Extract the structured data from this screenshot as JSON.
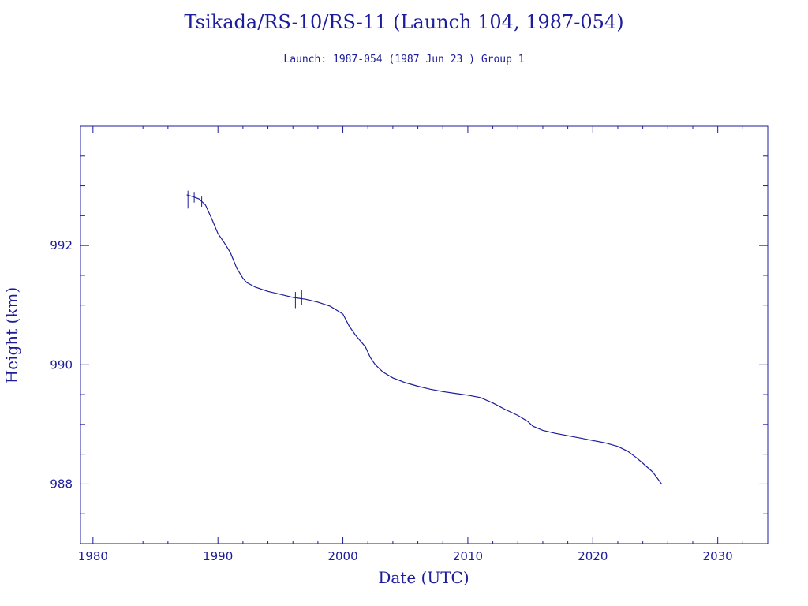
{
  "chart_data": {
    "type": "line",
    "title": "Tsikada/RS-10/RS-11 (Launch 104, 1987-054)",
    "subtitle": "Launch: 1987-054  (1987 Jun 23 )  Group 1",
    "xlabel": "Date (UTC)",
    "ylabel": "Height (km)",
    "xlim": [
      1979,
      2034
    ],
    "ylim": [
      987,
      994
    ],
    "x_ticks": [
      1980,
      1990,
      2000,
      2010,
      2020,
      2030
    ],
    "y_ticks": [
      988,
      990,
      992
    ],
    "grid": false,
    "color": "#1c1c9c",
    "series": [
      {
        "x": [
          1987.5,
          1988.0,
          1988.5,
          1989.0,
          1989.5,
          1990.0,
          1990.5,
          1991.0,
          1991.5,
          1992.0,
          1992.3,
          1993.0,
          1994.0,
          1995.0,
          1996.0,
          1997.0,
          1998.0,
          1999.0,
          2000.0,
          2000.5,
          2001.0,
          2001.8,
          2002.2,
          2002.6,
          2003.2,
          2004.0,
          2005.0,
          2006.0,
          2007.0,
          2008.0,
          2009.0,
          2010.0,
          2011.0,
          2012.0,
          2013.0,
          2014.0,
          2014.8,
          2015.2,
          2016.0,
          2017.0,
          2018.0,
          2019.0,
          2020.0,
          2021.0,
          2022.0,
          2022.8,
          2023.5,
          2024.0,
          2024.8,
          2025.5
        ],
        "y": [
          992.85,
          992.82,
          992.78,
          992.68,
          992.45,
          992.2,
          992.05,
          991.88,
          991.62,
          991.45,
          991.38,
          991.3,
          991.23,
          991.18,
          991.13,
          991.1,
          991.05,
          990.98,
          990.85,
          990.65,
          990.5,
          990.3,
          990.12,
          990.0,
          989.88,
          989.78,
          989.7,
          989.64,
          989.59,
          989.55,
          989.52,
          989.49,
          989.45,
          989.36,
          989.25,
          989.15,
          989.05,
          988.97,
          988.9,
          988.85,
          988.81,
          988.77,
          988.73,
          988.69,
          988.63,
          988.55,
          988.44,
          988.35,
          988.2,
          988.0
        ]
      }
    ],
    "spikes": [
      {
        "x": 1987.6,
        "y_low": 992.62,
        "y_high": 992.92
      },
      {
        "x": 1988.1,
        "y_low": 992.72,
        "y_high": 992.9
      },
      {
        "x": 1988.7,
        "y_low": 992.65,
        "y_high": 992.82
      },
      {
        "x": 1996.2,
        "y_low": 990.95,
        "y_high": 991.22
      },
      {
        "x": 1996.7,
        "y_low": 991.0,
        "y_high": 991.25
      }
    ]
  }
}
